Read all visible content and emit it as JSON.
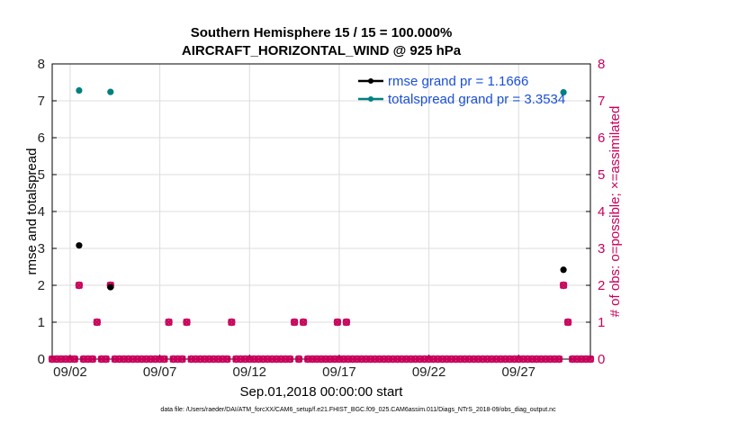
{
  "chart_data": {
    "type": "scatter",
    "title": [
      "Southern Hemisphere 15 / 15 = 100.000%",
      "AIRCRAFT_HORIZONTAL_WIND @ 925 hPa"
    ],
    "xlabel": "Sep.01,2018 00:00:00 start",
    "ylabel_left": "rmse and totalspread",
    "ylabel_right": "# of obs: o=possible; ×=assimilated",
    "x_ticks": [
      {
        "day": 2,
        "label": "09/02"
      },
      {
        "day": 7,
        "label": "09/07"
      },
      {
        "day": 12,
        "label": "09/12"
      },
      {
        "day": 17,
        "label": "09/17"
      },
      {
        "day": 22,
        "label": "09/22"
      },
      {
        "day": 27,
        "label": "09/27"
      }
    ],
    "xlim": [
      1.0,
      31.0
    ],
    "ylim_left": [
      0,
      8
    ],
    "ylim_right": [
      0,
      8
    ],
    "y_ticks": [
      "0",
      "1",
      "2",
      "3",
      "4",
      "5",
      "6",
      "7",
      "8"
    ],
    "legend_position": "top-right",
    "series": [
      {
        "name": "rmse grand pr = 1.1666",
        "color": "#000000",
        "axis": "left",
        "points": [
          [
            2.5,
            3.08
          ],
          [
            4.25,
            1.95
          ],
          [
            29.5,
            2.42
          ]
        ]
      },
      {
        "name": "totalspread grand pr = 3.3534",
        "color": "#008080",
        "axis": "left",
        "points": [
          [
            2.5,
            7.28
          ],
          [
            4.25,
            7.24
          ],
          [
            29.5,
            7.23
          ]
        ]
      },
      {
        "name": "obs possible",
        "color": "#c8005a",
        "axis": "right",
        "marker": "o",
        "points": [
          [
            2.5,
            2
          ],
          [
            3.5,
            1
          ],
          [
            4.25,
            2
          ],
          [
            7.5,
            1
          ],
          [
            8.5,
            1
          ],
          [
            11.0,
            1
          ],
          [
            14.5,
            1
          ],
          [
            15.0,
            1
          ],
          [
            16.9,
            1
          ],
          [
            17.4,
            1
          ],
          [
            29.5,
            2
          ],
          [
            29.75,
            1
          ]
        ]
      },
      {
        "name": "obs assimilated",
        "color": "#c8005a",
        "axis": "right",
        "marker": "x",
        "points": [
          [
            2.5,
            2
          ],
          [
            3.5,
            1
          ],
          [
            4.25,
            2
          ],
          [
            7.5,
            1
          ],
          [
            8.5,
            1
          ],
          [
            11.0,
            1
          ],
          [
            14.5,
            1
          ],
          [
            15.0,
            1
          ],
          [
            16.9,
            1
          ],
          [
            17.4,
            1
          ],
          [
            29.5,
            2
          ],
          [
            29.75,
            1
          ]
        ]
      }
    ],
    "zero_obs_times_step": 0.25
  },
  "footer": "data file: /Users/raeder/DAI/ATM_forcXX/CAM6_setup/f.e21.FHIST_BGC.f09_025.CAM6assim.011/Diags_NTrS_2018-09/obs_diag_output.nc",
  "colors": {
    "obs": "#c8005a",
    "rmse": "#000000",
    "spread": "#008080",
    "legend_text": "#1a4fd6"
  }
}
